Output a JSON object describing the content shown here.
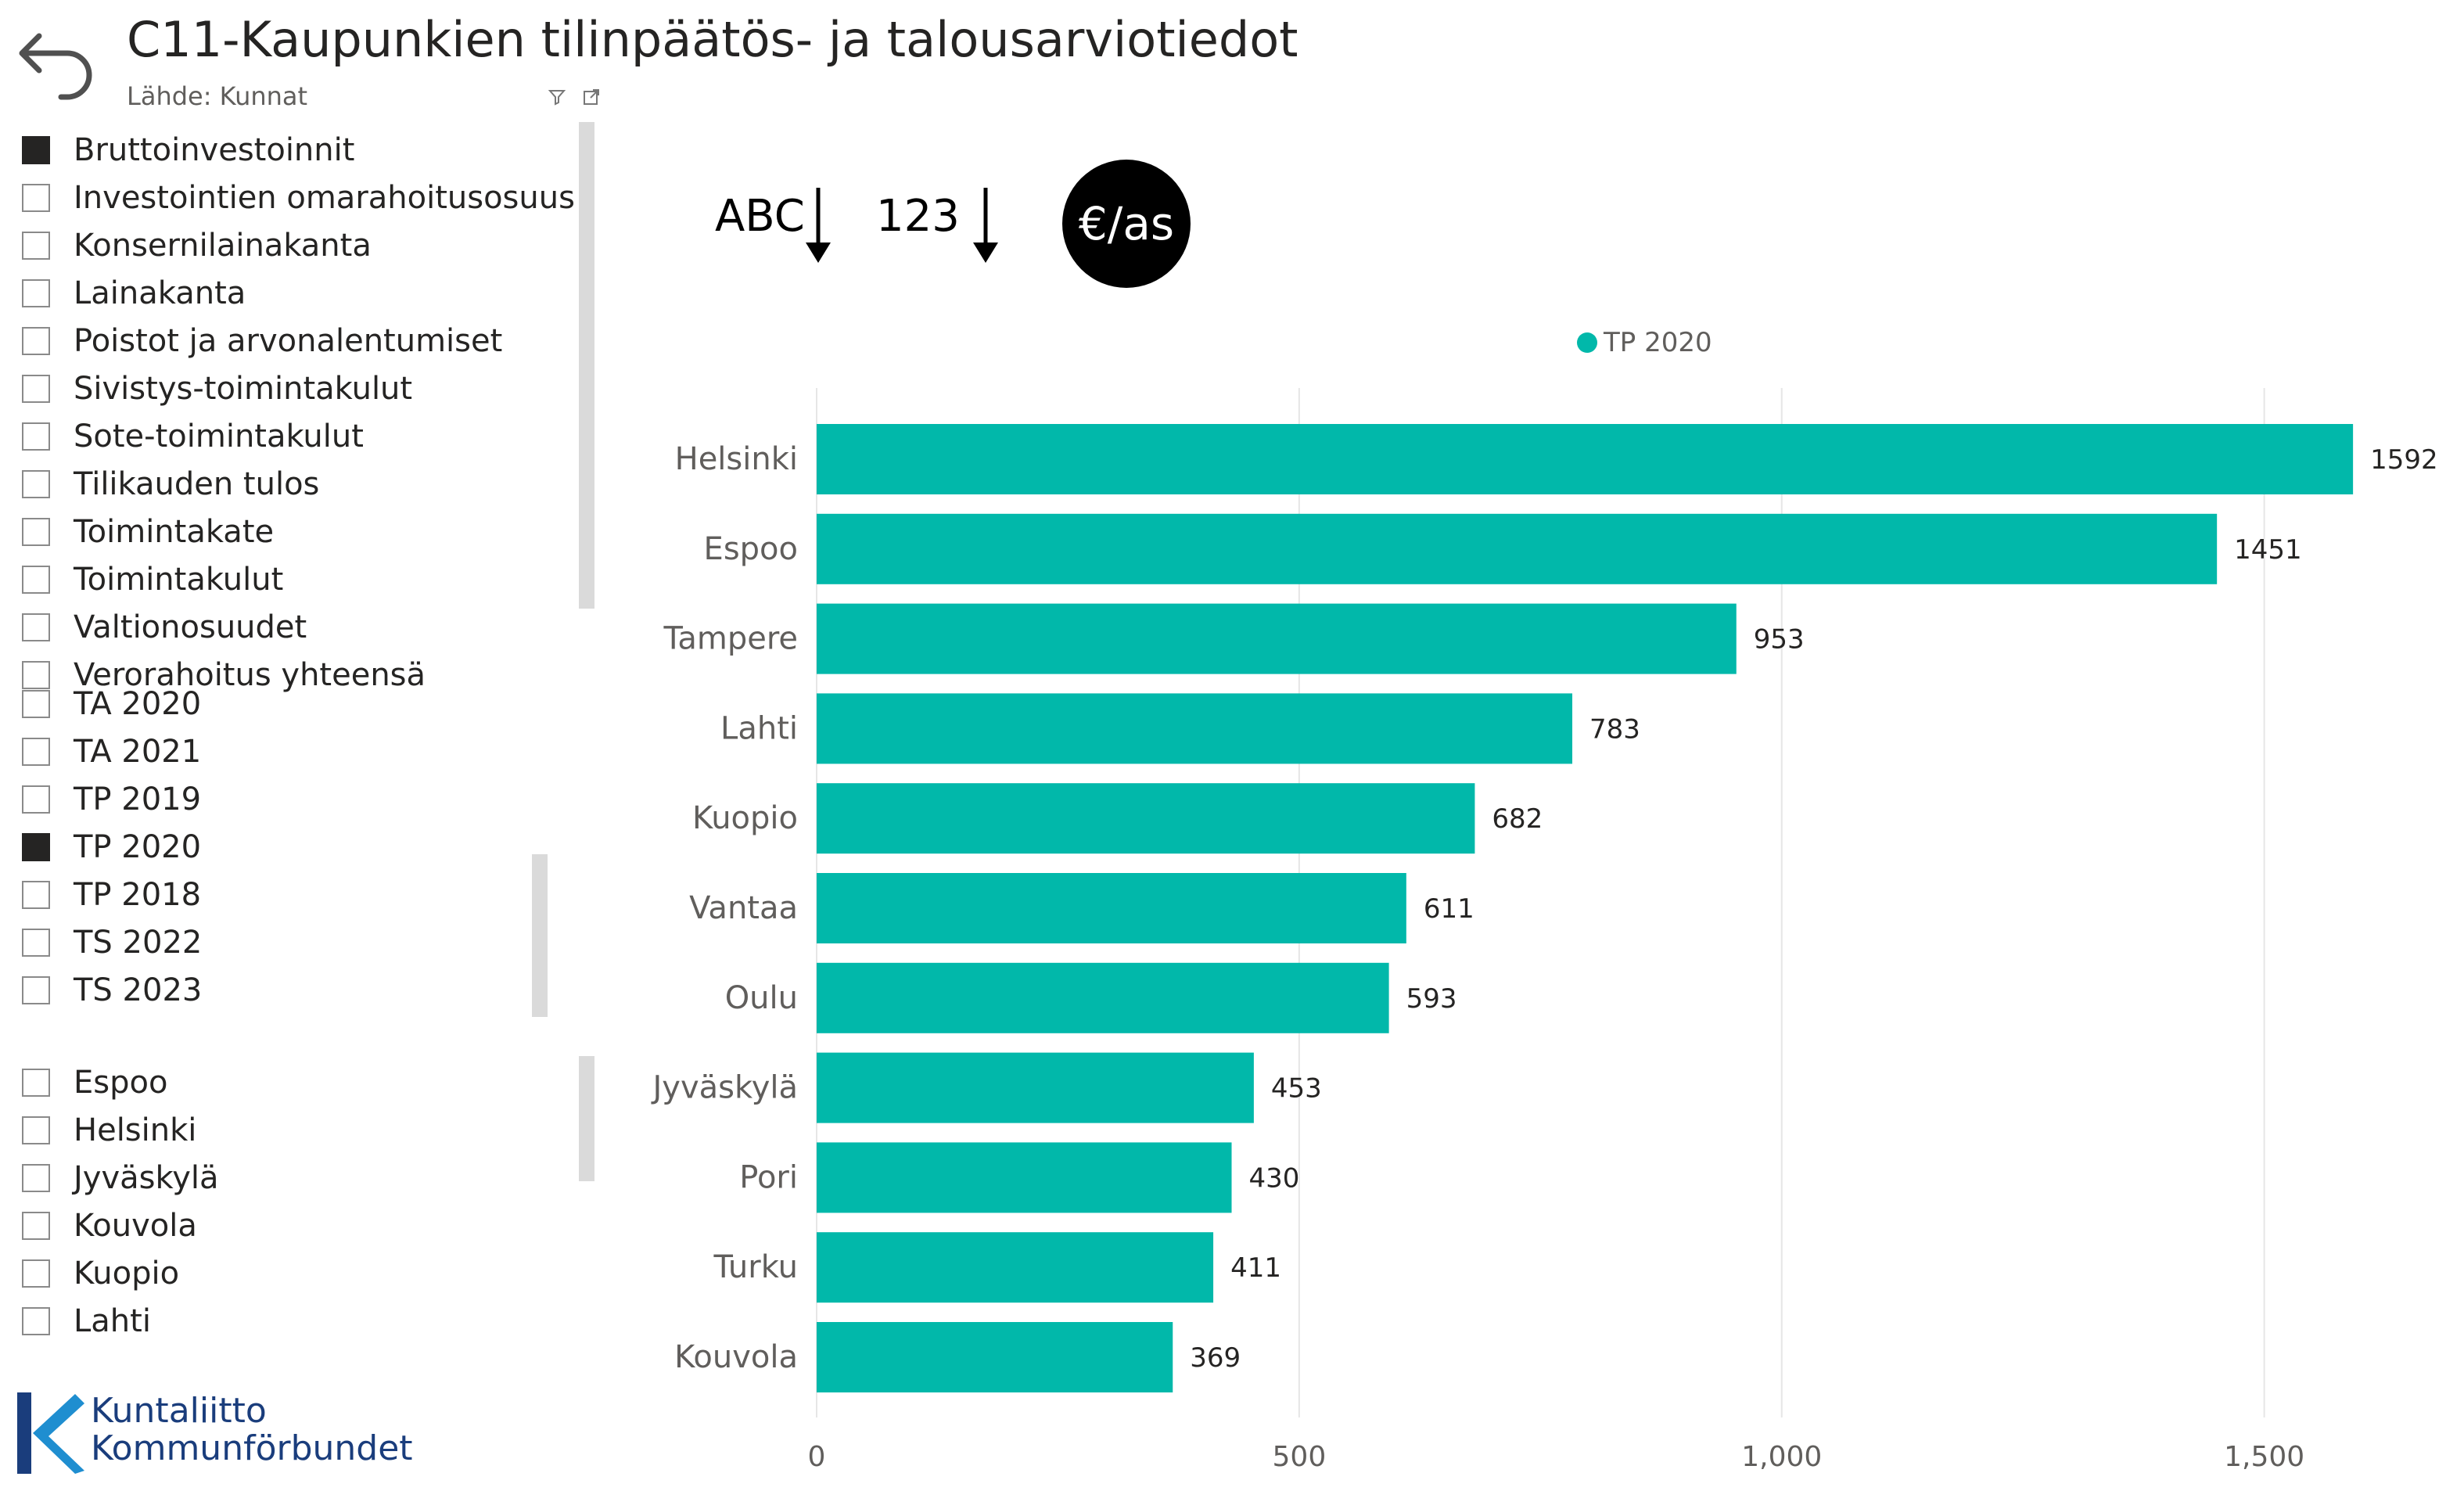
{
  "header": {
    "title": "C11-Kaupunkien tilinpäätös- ja talousarviotiedot",
    "subtitle": "Lähde: Kunnat"
  },
  "measure_slicer": {
    "items": [
      {
        "label": "Bruttoinvestoinnit",
        "checked": true
      },
      {
        "label": "Investointien omarahoitusosuus",
        "checked": false
      },
      {
        "label": "Konsernilainakanta",
        "checked": false
      },
      {
        "label": "Lainakanta",
        "checked": false
      },
      {
        "label": "Poistot ja arvonalentumiset",
        "checked": false
      },
      {
        "label": "Sivistys-toimintakulut",
        "checked": false
      },
      {
        "label": "Sote-toimintakulut",
        "checked": false
      },
      {
        "label": "Tilikauden tulos",
        "checked": false
      },
      {
        "label": "Toimintakate",
        "checked": false
      },
      {
        "label": "Toimintakulut",
        "checked": false
      },
      {
        "label": "Valtionosuudet",
        "checked": false
      },
      {
        "label": "Verorahoitus yhteensä",
        "checked": false
      }
    ]
  },
  "year_slicer": {
    "items": [
      {
        "label": "TA 2020",
        "checked": false
      },
      {
        "label": "TA 2021",
        "checked": false
      },
      {
        "label": "TP 2019",
        "checked": false
      },
      {
        "label": "TP 2020",
        "checked": true
      },
      {
        "label": "TP 2018",
        "checked": false
      },
      {
        "label": "TS 2022",
        "checked": false
      },
      {
        "label": "TS 2023",
        "checked": false
      }
    ]
  },
  "city_slicer": {
    "items": [
      {
        "label": "Espoo",
        "checked": false
      },
      {
        "label": "Helsinki",
        "checked": false
      },
      {
        "label": "Jyväskylä",
        "checked": false
      },
      {
        "label": "Kouvola",
        "checked": false
      },
      {
        "label": "Kuopio",
        "checked": false
      },
      {
        "label": "Lahti",
        "checked": false
      }
    ]
  },
  "controls": {
    "sort_abc": "ABC",
    "sort_123": "123",
    "unit_badge": "€/as"
  },
  "logo": {
    "line1": "Kuntaliitto",
    "line2": "Kommunförbundet"
  },
  "colors": {
    "bar": "#01B8AA",
    "logo": "#1a3d7c"
  },
  "chart_data": {
    "type": "bar",
    "orientation": "horizontal",
    "categories": [
      "Helsinki",
      "Espoo",
      "Tampere",
      "Lahti",
      "Kuopio",
      "Vantaa",
      "Oulu",
      "Jyväskylä",
      "Pori",
      "Turku",
      "Kouvola"
    ],
    "series": [
      {
        "name": "TP 2020",
        "values": [
          1592,
          1451,
          953,
          783,
          682,
          611,
          593,
          453,
          430,
          411,
          369
        ]
      }
    ],
    "xlim": [
      0,
      1650
    ],
    "xticks": [
      0,
      500,
      1000,
      1500
    ],
    "xtick_labels": [
      "0",
      "500",
      "1,000",
      "1,500"
    ],
    "grid": true,
    "legend": "top-center",
    "data_labels": true
  }
}
